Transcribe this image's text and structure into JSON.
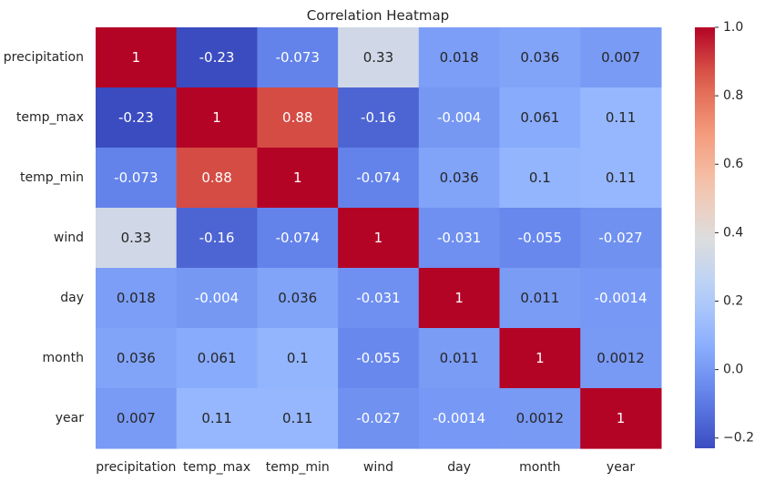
{
  "chart_data": {
    "type": "heatmap",
    "title": "Correlation Heatmap",
    "xlabel": "",
    "ylabel": "",
    "x_categories": [
      "precipitation",
      "temp_max",
      "temp_min",
      "wind",
      "day",
      "month",
      "year"
    ],
    "y_categories": [
      "precipitation",
      "temp_max",
      "temp_min",
      "wind",
      "day",
      "month",
      "year"
    ],
    "values": [
      [
        1,
        -0.23,
        -0.073,
        0.33,
        0.018,
        0.036,
        0.007
      ],
      [
        -0.23,
        1,
        0.88,
        -0.16,
        -0.004,
        0.061,
        0.11
      ],
      [
        -0.073,
        0.88,
        1,
        -0.074,
        0.036,
        0.1,
        0.11
      ],
      [
        0.33,
        -0.16,
        -0.074,
        1,
        -0.031,
        -0.055,
        -0.027
      ],
      [
        0.018,
        -0.004,
        0.036,
        -0.031,
        1,
        0.011,
        -0.0014
      ],
      [
        0.036,
        0.061,
        0.1,
        -0.055,
        0.011,
        1,
        0.0012
      ],
      [
        0.007,
        0.11,
        0.11,
        -0.027,
        -0.0014,
        0.0012,
        1
      ]
    ],
    "annotations": [
      [
        "1",
        "-0.23",
        "-0.073",
        "0.33",
        "0.018",
        "0.036",
        "0.007"
      ],
      [
        "-0.23",
        "1",
        "0.88",
        "-0.16",
        "-0.004",
        "0.061",
        "0.11"
      ],
      [
        "-0.073",
        "0.88",
        "1",
        "-0.074",
        "0.036",
        "0.1",
        "0.11"
      ],
      [
        "0.33",
        "-0.16",
        "-0.074",
        "1",
        "-0.031",
        "-0.055",
        "-0.027"
      ],
      [
        "0.018",
        "-0.004",
        "0.036",
        "-0.031",
        "1",
        "0.011",
        "-0.0014"
      ],
      [
        "0.036",
        "0.061",
        "0.1",
        "-0.055",
        "0.011",
        "1",
        "0.0012"
      ],
      [
        "0.007",
        "0.11",
        "0.11",
        "-0.027",
        "-0.0014",
        "0.0012",
        "1"
      ]
    ],
    "colormap": "coolwarm",
    "color_range": [
      -0.23,
      1
    ],
    "colorbar_ticks": [
      -0.2,
      0.0,
      0.2,
      0.4,
      0.6,
      0.8,
      1.0
    ],
    "colorbar_tick_labels": [
      "−0.2",
      "0.0",
      "0.2",
      "0.4",
      "0.6",
      "0.8",
      "1.0"
    ],
    "colorbar_position": "right",
    "grid": false
  }
}
